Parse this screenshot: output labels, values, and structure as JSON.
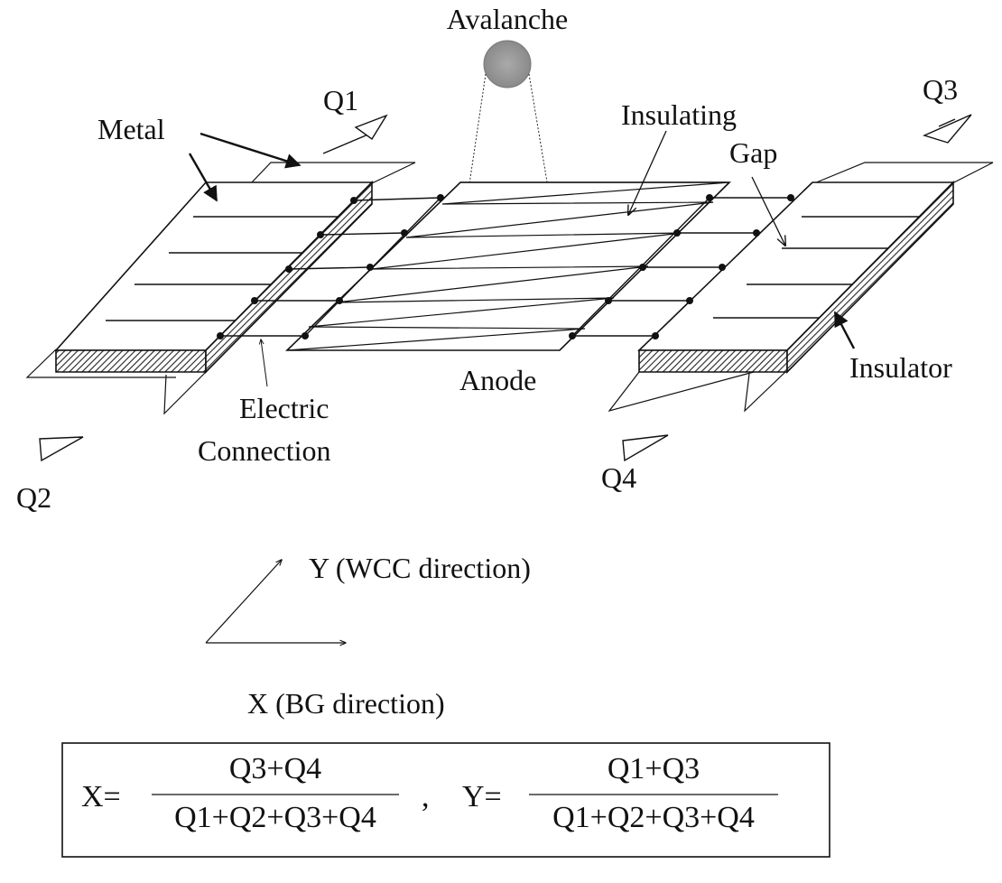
{
  "labels": {
    "avalanche": "Avalanche",
    "metal": "Metal",
    "insulating": "Insulating",
    "gap": "Gap",
    "anode": "Anode",
    "insulator": "Insulator",
    "electric": "Electric",
    "connection": "Connection"
  },
  "charges": {
    "q1": "Q1",
    "q2": "Q2",
    "q3": "Q3",
    "q4": "Q4"
  },
  "axes": {
    "y": "Y (WCC direction)",
    "x": "X (BG direction)"
  },
  "formula": {
    "x_lhs": "X=",
    "x_num": "Q3+Q4",
    "x_den": "Q1+Q2+Q3+Q4",
    "comma": ",",
    "y_lhs": "Y=",
    "y_num": "Q1+Q3",
    "y_den": "Q1+Q2+Q3+Q4"
  }
}
